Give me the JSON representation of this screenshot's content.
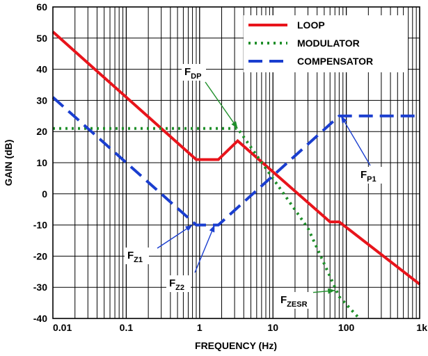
{
  "chart_data": {
    "type": "line",
    "xlabel": "FREQUENCY (Hz)",
    "ylabel": "GAIN (dB)",
    "xscale": "log",
    "xlim": [
      0.01,
      1000
    ],
    "ylim": [
      -40,
      60
    ],
    "grid": true,
    "legend_position": "top-right",
    "x_tick_labels": [
      "0.01",
      "0.1",
      "1",
      "10",
      "100",
      "1k"
    ],
    "x_tick_values": [
      0.01,
      0.1,
      1,
      10,
      100,
      1000
    ],
    "y_tick_labels": [
      "-40",
      "-30",
      "-20",
      "-10",
      "0",
      "10",
      "20",
      "30",
      "40",
      "50",
      "60"
    ],
    "y_tick_values": [
      -40,
      -30,
      -20,
      -10,
      0,
      10,
      20,
      30,
      40,
      50,
      60
    ],
    "series": [
      {
        "name": "LOOP",
        "color": "#e8141b",
        "style": "solid",
        "points": [
          [
            0.01,
            52
          ],
          [
            0.9,
            11
          ],
          [
            1.8,
            11
          ],
          [
            3.3,
            17
          ],
          [
            60,
            -9
          ],
          [
            80,
            -9
          ],
          [
            1000,
            -29
          ]
        ]
      },
      {
        "name": "MODULATOR",
        "color": "#1f8f2a",
        "style": "dotted",
        "points": [
          [
            0.01,
            21
          ],
          [
            3.3,
            21
          ],
          [
            30,
            -11
          ],
          [
            80,
            -33
          ],
          [
            150,
            -40
          ]
        ]
      },
      {
        "name": "COMPENSATOR",
        "color": "#1a3ecf",
        "style": "dashed",
        "points": [
          [
            0.01,
            31
          ],
          [
            0.9,
            -10
          ],
          [
            1.8,
            -10
          ],
          [
            80,
            25
          ],
          [
            1000,
            25
          ]
        ]
      }
    ],
    "annotations": [
      {
        "main": "F",
        "sub": "DP",
        "target": [
          3.3,
          21
        ]
      },
      {
        "main": "F",
        "sub": "P1",
        "target": [
          85,
          25
        ]
      },
      {
        "main": "F",
        "sub": "Z1",
        "target": [
          0.8,
          -10
        ]
      },
      {
        "main": "F",
        "sub": "Z2",
        "target": [
          1.6,
          -10
        ]
      },
      {
        "main": "F",
        "sub": "ZESR",
        "target": [
          70,
          -31
        ]
      }
    ]
  }
}
